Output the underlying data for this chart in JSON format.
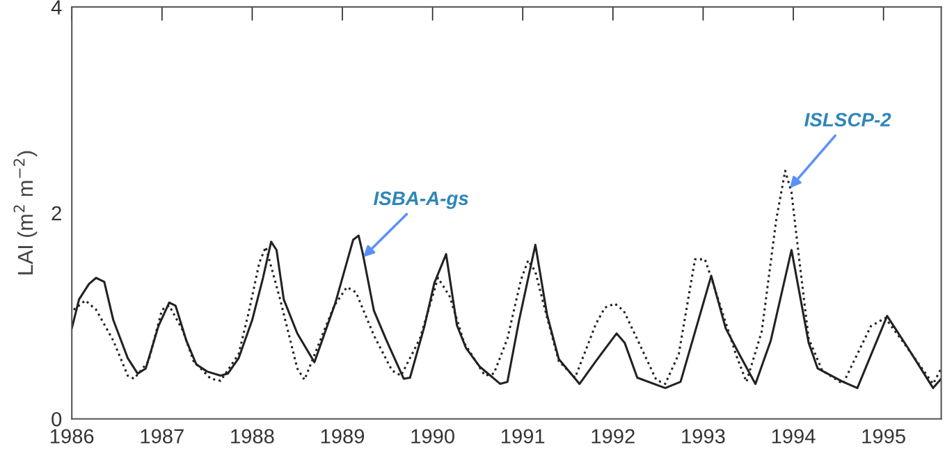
{
  "chart_data": {
    "type": "line",
    "ylabel": "LAI (m$^{2}$ m$^{−2}$)",
    "xlim": [
      1986,
      1995.64
    ],
    "xticks": [
      1986,
      1987,
      1988,
      1989,
      1990,
      1991,
      1992,
      1993,
      1994,
      1995
    ],
    "ylim": [
      0,
      4
    ],
    "yticks": [
      0,
      2,
      4
    ],
    "grid": false,
    "legend": false,
    "series": [
      {
        "color": "#222222",
        "line_style": "solid",
        "x": [
          1986.0,
          1986.08,
          1986.19,
          1986.27,
          1986.36,
          1986.46,
          1986.62,
          1986.73,
          1986.82,
          1986.96,
          1987.08,
          1987.15,
          1987.27,
          1987.38,
          1987.5,
          1987.65,
          1987.73,
          1987.85,
          1988.0,
          1988.12,
          1988.21,
          1988.27,
          1988.35,
          1988.5,
          1988.69,
          1988.92,
          1989.12,
          1989.18,
          1989.23,
          1989.35,
          1989.48,
          1989.68,
          1989.75,
          1989.91,
          1990.02,
          1990.15,
          1990.27,
          1990.37,
          1990.52,
          1990.75,
          1990.83,
          1990.96,
          1991.14,
          1991.27,
          1991.4,
          1991.63,
          1991.81,
          1992.04,
          1992.13,
          1992.27,
          1992.58,
          1992.75,
          1993.09,
          1993.25,
          1993.4,
          1993.58,
          1993.75,
          1993.98,
          1994.17,
          1994.27,
          1994.55,
          1994.71,
          1995.04,
          1995.27,
          1995.55,
          1995.64
        ],
        "values": [
          0.88,
          1.16,
          1.31,
          1.37,
          1.33,
          0.96,
          0.59,
          0.44,
          0.49,
          0.9,
          1.13,
          1.1,
          0.76,
          0.53,
          0.46,
          0.42,
          0.44,
          0.59,
          0.96,
          1.37,
          1.72,
          1.64,
          1.16,
          0.83,
          0.55,
          1.12,
          1.74,
          1.78,
          1.59,
          1.05,
          0.78,
          0.39,
          0.4,
          0.9,
          1.32,
          1.6,
          0.91,
          0.69,
          0.51,
          0.34,
          0.36,
          0.96,
          1.69,
          1.01,
          0.58,
          0.34,
          0.56,
          0.83,
          0.74,
          0.4,
          0.3,
          0.36,
          1.39,
          0.88,
          0.63,
          0.34,
          0.76,
          1.64,
          0.74,
          0.49,
          0.36,
          0.3,
          1.0,
          0.69,
          0.3,
          0.39
        ]
      },
      {
        "color": "#222222",
        "line_style": "dotted",
        "x": [
          1986.02,
          1986.15,
          1986.27,
          1986.46,
          1986.62,
          1986.69,
          1986.85,
          1987.0,
          1987.08,
          1987.23,
          1987.35,
          1987.54,
          1987.65,
          1987.85,
          1987.96,
          1988.08,
          1988.15,
          1988.31,
          1988.5,
          1988.58,
          1988.73,
          1988.91,
          1989.05,
          1989.15,
          1989.35,
          1989.55,
          1989.65,
          1989.86,
          1990.06,
          1990.19,
          1990.35,
          1990.58,
          1990.68,
          1990.83,
          1990.98,
          1991.06,
          1991.14,
          1991.25,
          1991.4,
          1991.58,
          1991.81,
          1991.91,
          1992.02,
          1992.12,
          1992.25,
          1992.48,
          1992.58,
          1992.73,
          1992.91,
          1993.02,
          1993.09,
          1993.37,
          1993.48,
          1993.65,
          1993.81,
          1993.91,
          1993.98,
          1994.06,
          1994.17,
          1994.32,
          1994.55,
          1994.86,
          1995.02,
          1995.19,
          1995.55,
          1995.64
        ],
        "values": [
          1.06,
          1.15,
          1.06,
          0.76,
          0.42,
          0.39,
          0.56,
          1.06,
          1.1,
          0.86,
          0.56,
          0.39,
          0.37,
          0.63,
          1.03,
          1.52,
          1.67,
          1.16,
          0.49,
          0.38,
          0.71,
          1.1,
          1.28,
          1.23,
          0.81,
          0.47,
          0.42,
          0.78,
          1.37,
          1.19,
          0.74,
          0.42,
          0.44,
          0.78,
          1.35,
          1.54,
          1.43,
          1.05,
          0.56,
          0.4,
          0.92,
          1.08,
          1.12,
          1.05,
          0.81,
          0.38,
          0.34,
          0.63,
          1.55,
          1.55,
          1.37,
          0.61,
          0.36,
          0.85,
          1.93,
          2.41,
          2.2,
          1.59,
          0.78,
          0.47,
          0.34,
          0.9,
          0.98,
          0.78,
          0.34,
          0.49
        ]
      }
    ],
    "annotations": [
      {
        "text": "ISBA-A-gs",
        "x": 1989.23,
        "y": 1.57
      },
      {
        "text": "ISLSCP-2",
        "x": 1993.96,
        "y": 2.24
      }
    ]
  }
}
